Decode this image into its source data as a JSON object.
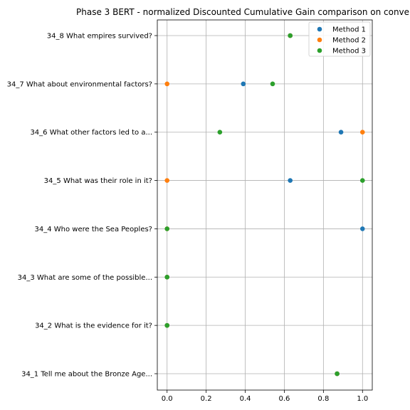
{
  "chart_data": {
    "type": "scatter",
    "title": "Phase 3 BERT - normalized Discounted Cumulative Gain comparison on conve",
    "xlabel": "",
    "ylabel": "",
    "xlim": [
      -0.05,
      1.05
    ],
    "x_ticks": [
      0.0,
      0.2,
      0.4,
      0.6,
      0.8,
      1.0
    ],
    "x_tick_labels": [
      "0.0",
      "0.2",
      "0.4",
      "0.6",
      "0.8",
      "1.0"
    ],
    "grid": true,
    "legend_position": "top-right",
    "categories": [
      "34_1 Tell me about the Bronze Age...",
      "34_2 What is the evidence for it?",
      "34_3 What are some of the possible...",
      "34_4 Who were the Sea Peoples?",
      "34_5 What was their role in it?",
      "34_6 What other factors led to a...",
      "34_7 What about environmental factors?",
      "34_8 What empires survived?"
    ],
    "series": [
      {
        "name": "Method 1",
        "color": "#1f77b4",
        "values": [
          0.87,
          0.0,
          0.0,
          1.0,
          0.63,
          0.89,
          0.39,
          0.63
        ]
      },
      {
        "name": "Method 2",
        "color": "#ff7f0e",
        "values": [
          0.87,
          0.0,
          0.0,
          0.0,
          0.0,
          1.0,
          0.0,
          0.63
        ]
      },
      {
        "name": "Method 3",
        "color": "#2ca02c",
        "values": [
          0.87,
          0.0,
          0.0,
          0.0,
          1.0,
          0.27,
          0.54,
          0.63
        ]
      }
    ]
  }
}
